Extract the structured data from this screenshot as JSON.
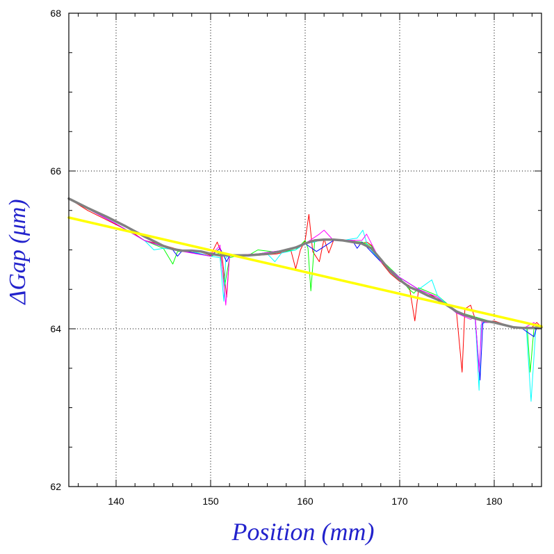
{
  "chart_data": {
    "type": "line",
    "title": "",
    "xlabel": "Position (mm)",
    "ylabel": "ΔGap (μm)",
    "xlim": [
      135,
      185
    ],
    "ylim": [
      62,
      68
    ],
    "grid": true,
    "x_ticks": [
      140,
      150,
      160,
      170,
      180
    ],
    "x_tick_labels": [
      "140",
      "150",
      "160",
      "170",
      "180"
    ],
    "y_ticks": [
      62,
      64,
      66,
      68
    ],
    "y_tick_labels": [
      "62",
      "64",
      "66",
      "68"
    ],
    "colors": {
      "axes": "#000000",
      "grid": "#000000",
      "axis_title": "#2222cc",
      "average": "#808080",
      "fit": "#ffff00"
    },
    "series": [
      {
        "color": "#ff0000",
        "x": [
          135,
          137,
          140,
          142,
          143,
          145,
          147,
          149,
          150,
          150.7,
          151.2,
          151.7,
          152,
          153,
          155,
          157,
          158.5,
          159,
          159.5,
          160,
          160.4,
          160.8,
          161.5,
          162,
          162.5,
          163,
          165,
          166,
          166.5,
          167,
          168,
          169,
          170,
          171,
          171.6,
          172,
          173,
          174,
          175,
          176,
          176.6,
          176.9,
          177.5,
          178,
          179,
          180,
          182,
          183,
          184,
          184.5,
          185
        ],
        "y": [
          65.65,
          65.5,
          65.32,
          65.2,
          65.12,
          65.06,
          64.99,
          64.97,
          64.93,
          65.1,
          64.94,
          64.4,
          64.92,
          64.93,
          64.93,
          64.95,
          64.99,
          64.76,
          65.0,
          65.12,
          65.45,
          64.98,
          64.85,
          65.14,
          64.96,
          65.12,
          65.12,
          65.08,
          65.1,
          65.06,
          64.85,
          64.7,
          64.6,
          64.55,
          64.1,
          64.5,
          64.45,
          64.38,
          64.3,
          64.22,
          63.45,
          64.25,
          64.3,
          64.12,
          64.09,
          64.1,
          64.02,
          64.0,
          64.02,
          64.08,
          64.02
        ]
      },
      {
        "color": "#00ff00",
        "x": [
          135,
          140,
          143,
          145,
          146,
          146.5,
          148,
          150,
          151,
          151.5,
          152,
          153,
          154,
          155,
          157,
          159,
          160,
          160.3,
          160.6,
          161,
          162,
          164,
          166,
          167,
          168,
          170,
          171,
          171.5,
          172,
          174,
          176,
          178,
          180,
          182,
          183.5,
          183.8,
          184.2,
          185
        ],
        "y": [
          65.65,
          65.33,
          65.12,
          65.02,
          64.82,
          64.98,
          64.98,
          64.92,
          64.96,
          64.55,
          64.9,
          64.93,
          64.93,
          65.0,
          64.97,
          65.0,
          65.12,
          65.02,
          64.48,
          65.1,
          65.14,
          65.12,
          65.1,
          65.05,
          64.88,
          64.65,
          64.5,
          64.45,
          64.52,
          64.42,
          64.22,
          64.15,
          64.08,
          64.02,
          64.0,
          63.45,
          64.0,
          64.02
        ]
      },
      {
        "color": "#00ffff",
        "x": [
          135,
          140,
          143,
          144,
          145,
          148,
          150,
          151,
          151.4,
          151.6,
          152,
          154,
          156,
          156.8,
          157.5,
          159,
          160,
          161,
          162,
          164,
          165.5,
          166.1,
          166.6,
          168,
          170,
          172,
          173.4,
          174,
          176,
          178,
          178.4,
          178.6,
          179,
          180,
          182,
          183.4,
          183.9,
          184.4,
          185
        ],
        "y": [
          65.65,
          65.33,
          65.12,
          65.0,
          65.02,
          64.98,
          64.92,
          64.9,
          64.35,
          64.9,
          64.93,
          64.93,
          64.95,
          64.85,
          64.96,
          65.0,
          65.08,
          65.1,
          65.14,
          65.12,
          65.15,
          65.25,
          65.05,
          64.85,
          64.65,
          64.5,
          64.62,
          64.42,
          64.2,
          64.12,
          63.22,
          64.05,
          64.08,
          64.08,
          64.02,
          64.0,
          63.08,
          64.0,
          64.02
        ]
      },
      {
        "color": "#0000ff",
        "x": [
          135,
          140,
          143,
          146,
          146.5,
          147,
          150,
          151,
          151.7,
          152,
          155,
          158,
          160,
          161.2,
          163,
          165,
          165.5,
          166,
          168,
          170,
          172,
          174,
          176,
          178,
          178.5,
          178.8,
          180,
          183,
          184.2,
          184.5,
          185
        ],
        "y": [
          65.65,
          65.33,
          65.12,
          65.0,
          64.92,
          64.99,
          64.92,
          65.02,
          64.85,
          64.93,
          64.95,
          65.0,
          65.08,
          64.98,
          65.12,
          65.12,
          65.02,
          65.1,
          64.85,
          64.65,
          64.5,
          64.4,
          64.2,
          64.12,
          63.35,
          64.08,
          64.08,
          64.0,
          63.9,
          64.02,
          64.02
        ]
      },
      {
        "color": "#ff00ff",
        "x": [
          135,
          140,
          143,
          146,
          150,
          151,
          151.6,
          152,
          155,
          158,
          160,
          161.5,
          162,
          163,
          165,
          166,
          166.5,
          168,
          170,
          172,
          174,
          176,
          177.5,
          178,
          178.4,
          178.7,
          179,
          180,
          183,
          184.2,
          184.6,
          185
        ],
        "y": [
          65.65,
          65.33,
          65.12,
          65.0,
          64.92,
          65.06,
          64.3,
          64.93,
          64.95,
          65.0,
          65.08,
          65.2,
          65.25,
          65.12,
          65.12,
          65.12,
          65.2,
          64.85,
          64.65,
          64.5,
          64.4,
          64.2,
          64.12,
          64.15,
          63.45,
          64.12,
          64.08,
          64.08,
          64.0,
          64.08,
          64.02,
          64.02
        ]
      },
      {
        "name": "",
        "color": "#808080",
        "role": "average",
        "x": [
          135,
          137,
          139,
          141,
          143,
          144,
          145,
          146,
          147,
          148,
          149,
          150,
          151,
          152,
          153,
          154,
          155,
          156,
          157,
          158,
          159,
          160,
          161,
          162,
          163,
          164,
          165,
          166,
          167,
          168,
          169,
          170,
          171,
          172,
          173,
          174,
          175,
          176,
          177,
          178,
          179,
          180,
          181,
          182,
          183,
          184,
          185
        ],
        "y": [
          65.65,
          65.53,
          65.42,
          65.3,
          65.17,
          65.11,
          65.05,
          65.01,
          64.99,
          64.99,
          64.98,
          64.95,
          64.93,
          64.93,
          64.93,
          64.93,
          64.94,
          64.95,
          64.97,
          65.0,
          65.03,
          65.08,
          65.12,
          65.13,
          65.13,
          65.12,
          65.1,
          65.08,
          65.02,
          64.88,
          64.73,
          64.62,
          64.53,
          64.48,
          64.42,
          64.37,
          64.3,
          64.22,
          64.17,
          64.13,
          64.1,
          64.08,
          64.05,
          64.02,
          64.01,
          64.01,
          64.02
        ]
      },
      {
        "name": "",
        "color": "#ffff00",
        "role": "linear-fit",
        "x": [
          135,
          185
        ],
        "y": [
          65.41,
          64.03
        ]
      }
    ]
  }
}
